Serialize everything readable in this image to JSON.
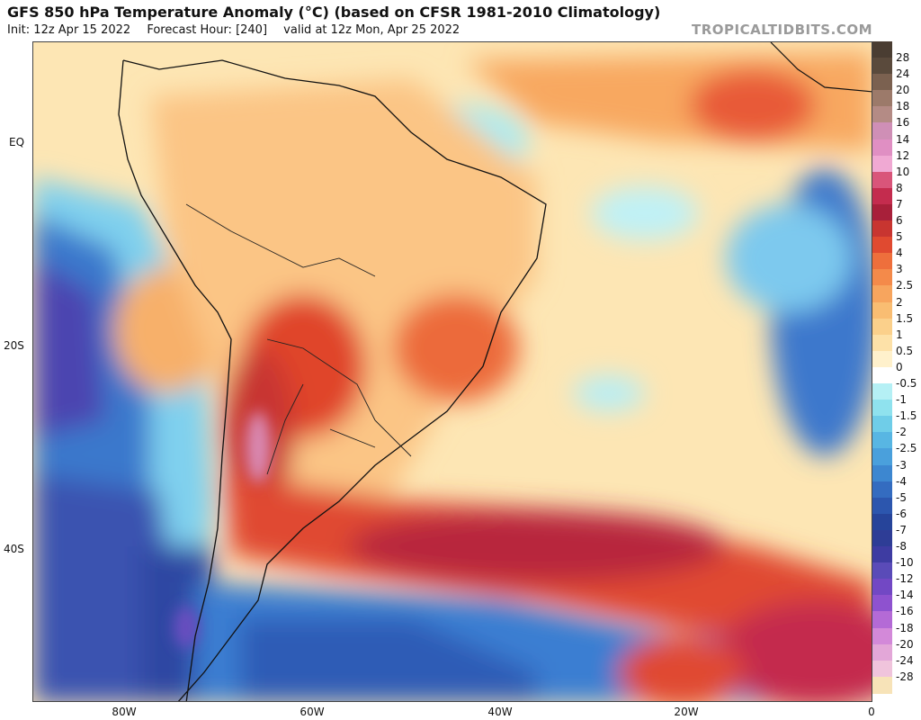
{
  "header": {
    "title": "GFS 850 hPa Temperature Anomaly (°C) (based on CFSR 1981-2010 Climatology)",
    "init": "Init: 12z Apr 15 2022",
    "forecast_hour": "Forecast Hour: [240]",
    "valid": "valid at 12z Mon, Apr 25 2022",
    "credit": "TROPICALTIDBITS.COM"
  },
  "map": {
    "lat_labels": [
      "EQ",
      "20S",
      "40S"
    ],
    "lon_labels": [
      "80W",
      "60W",
      "40W",
      "20W",
      "0"
    ]
  },
  "colorbar": {
    "levels": [
      "28",
      "24",
      "20",
      "18",
      "16",
      "14",
      "12",
      "10",
      "8",
      "7",
      "6",
      "5",
      "4",
      "3",
      "2.5",
      "2",
      "1.5",
      "1",
      "0.5",
      "0",
      "-0.5",
      "-1",
      "-1.5",
      "-2",
      "-2.5",
      "-3",
      "-4",
      "-5",
      "-6",
      "-7",
      "-8",
      "-10",
      "-12",
      "-14",
      "-16",
      "-18",
      "-20",
      "-24",
      "-28"
    ],
    "colors": [
      "#5a4a3c",
      "#7b6150",
      "#9c7a6a",
      "#b48b85",
      "#cf8fb6",
      "#e08fc3",
      "#f0a9d3",
      "#d9557a",
      "#c42c4e",
      "#a8203a",
      "#c83530",
      "#e04a30",
      "#ee6f3c",
      "#f48a4a",
      "#f7a55e",
      "#f9bd72",
      "#fbd08b",
      "#fde1a8",
      "#fff1cc",
      "#ffffff",
      "#b5f0f5",
      "#8fe2ee",
      "#6fcde8",
      "#58b6e3",
      "#4aa0dc",
      "#3d87d0",
      "#346cc0",
      "#2c56ae",
      "#26449a",
      "#2e3d96",
      "#3e3ca2",
      "#5a4bb8",
      "#7248c4",
      "#8e52cf",
      "#b46ad6",
      "#d389d9",
      "#e3a7d8",
      "#f0c4dc",
      "#f7e3b8"
    ]
  }
}
